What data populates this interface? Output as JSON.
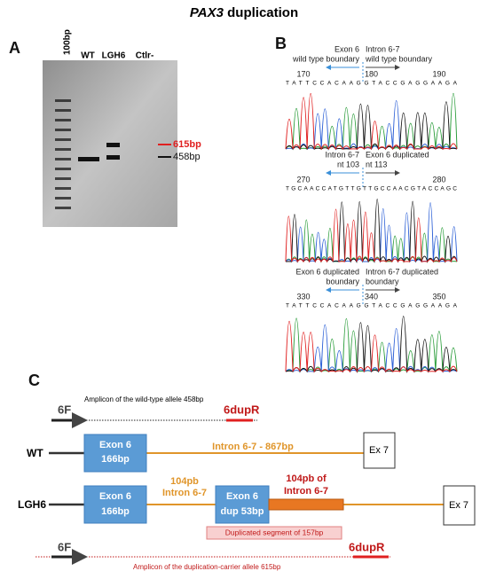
{
  "title": {
    "gene": "PAX3",
    "rest": "duplication"
  },
  "panel_a": {
    "label": "A",
    "ladder": "100bp",
    "lanes": [
      "WT",
      "LGH6",
      "Ctlr-"
    ],
    "bands": [
      "615bp",
      "458bp"
    ]
  },
  "panel_b": {
    "label": "B",
    "traces": [
      {
        "left": [
          "Exon 6",
          "wild type boundary"
        ],
        "right": [
          "Intron 6-7",
          "wild type boundary"
        ],
        "positions": [
          "170",
          "180",
          "190"
        ],
        "sequence": "TATTCCACAAGGTACCGAGGAAGA"
      },
      {
        "left": [
          "Intron 6-7",
          "nt 103"
        ],
        "right": [
          "Exon 6 duplicated",
          "nt 113"
        ],
        "positions": [
          "270",
          "280"
        ],
        "sequence": "TGCAACCATGTTGTTGCCAACGTACCAGC"
      },
      {
        "left": [
          "Exon 6 duplicated",
          "boundary"
        ],
        "right": [
          "Intron 6-7 duplicated",
          "boundary"
        ],
        "positions": [
          "330",
          "340",
          "350"
        ],
        "sequence": "TATTCCACAAGGTACCGAGGAAGA"
      }
    ]
  },
  "panel_c": {
    "label": "C",
    "wt_amplicon": {
      "text": "Amplicon of the wild-type  allele 458bp",
      "forward": "6F",
      "reverse": "6dupR"
    },
    "wt": {
      "name": "WT",
      "exon": [
        "Exon 6",
        "166bp"
      ],
      "intron": "Intron 6-7 - 867bp",
      "exon7": "Ex 7"
    },
    "lgh6": {
      "name": "LGH6",
      "exon": [
        "Exon 6",
        "166bp"
      ],
      "intron": [
        "104pb",
        "Intron 6-7"
      ],
      "dup_exon": [
        "Exon 6",
        "dup 53bp"
      ],
      "dup_intron": [
        "104pb of",
        "Intron 6-7"
      ],
      "exon7": "Ex 7",
      "segment": "Duplicated segment of 157bp"
    },
    "dup_amplicon": {
      "text": "Amplicon of the duplication-carrier allele 615bp",
      "forward": "6F",
      "reverse": "6dupR"
    }
  }
}
